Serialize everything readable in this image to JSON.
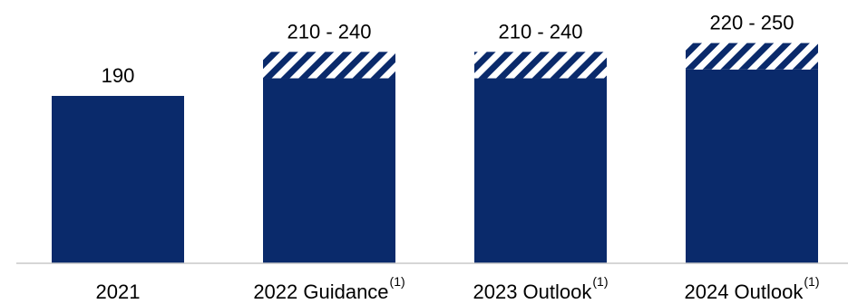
{
  "chart_data": {
    "type": "bar",
    "categories": [
      "2021",
      "2022 Guidance",
      "2023 Outlook",
      "2024 Outlook"
    ],
    "footnote_marks": [
      "",
      "(1)",
      "(1)",
      "(1)"
    ],
    "values_low": [
      190,
      210,
      210,
      220
    ],
    "values_high": [
      190,
      240,
      240,
      250
    ],
    "data_labels": [
      "190",
      "210 - 240",
      "210 - 240",
      "220 - 250"
    ],
    "range_style": "hatched",
    "title": "",
    "xlabel": "",
    "ylabel": "",
    "ylim": [
      0,
      260
    ],
    "grid": false,
    "legend": "none"
  },
  "colors": {
    "bar": "#0a2a6b",
    "hatch": "#0a2a6b",
    "axis": "#c8c8c8",
    "text": "#000000"
  }
}
